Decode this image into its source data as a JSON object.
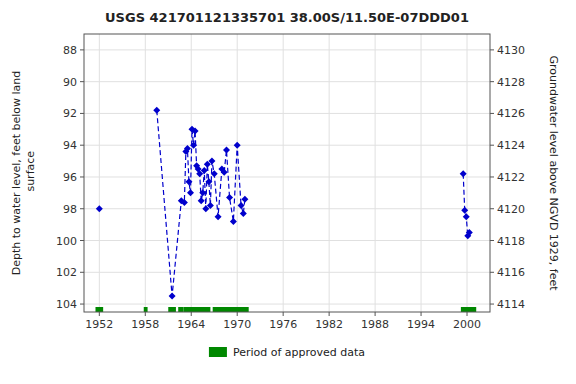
{
  "chart_data": {
    "type": "line",
    "title": "USGS 421701121335701 38.00S/11.50E-07DDD01",
    "ylabel": "Depth to water level, feet below land\n surface",
    "y2label": "Groundwater level above NGVD 1929, feet",
    "x": [
      1952.0,
      null,
      1959.5,
      1961.5,
      1962.7,
      1963.1,
      1963.3,
      1963.5,
      1963.7,
      1963.9,
      1964.1,
      1964.3,
      1964.5,
      1964.7,
      1964.9,
      1965.1,
      1965.3,
      1965.5,
      1965.7,
      1965.9,
      1966.1,
      1966.3,
      1966.5,
      1966.7,
      1967.0,
      1967.5,
      1968.0,
      1968.3,
      1968.6,
      1969.0,
      1969.5,
      1970.0,
      1970.5,
      1970.8,
      1971.0,
      null,
      1999.5,
      1999.7,
      1999.9,
      2000.1,
      2000.3
    ],
    "series": [
      {
        "type": "line",
        "color": "#0000CC",
        "marker": "diamond",
        "line_style": "dashed",
        "values": [
          98.0,
          null,
          91.8,
          103.5,
          97.5,
          97.6,
          94.4,
          94.2,
          96.3,
          97.0,
          93.0,
          94.0,
          93.1,
          95.3,
          95.5,
          95.8,
          97.5,
          97.0,
          95.6,
          98.0,
          95.2,
          96.3,
          97.8,
          95.0,
          95.8,
          98.5,
          95.5,
          95.7,
          94.3,
          97.3,
          98.8,
          94.0,
          97.8,
          98.3,
          97.4,
          null,
          95.8,
          98.1,
          98.5,
          99.7,
          99.5
        ]
      },
      {
        "type": "span",
        "name": "Period of approved data",
        "color": "#008800",
        "periods": [
          [
            1951.5,
            1952.5
          ],
          [
            1957.8,
            1958.3
          ],
          [
            1961.0,
            1962.0
          ],
          [
            1962.3,
            1963.0
          ],
          [
            1963.0,
            1966.5
          ],
          [
            1966.8,
            1971.5
          ],
          [
            1999.2,
            2001.2
          ]
        ]
      }
    ],
    "xlim": [
      1950,
      2003
    ],
    "xticks": [
      1952,
      1958,
      1964,
      1970,
      1976,
      1982,
      1988,
      1994,
      2000
    ],
    "ylim": [
      104.5,
      87
    ],
    "yticks": [
      88,
      90,
      92,
      94,
      96,
      98,
      100,
      102,
      104
    ],
    "y2lim": [
      4113.5,
      4131
    ],
    "y2ticks": [
      4114,
      4116,
      4118,
      4120,
      4122,
      4124,
      4126,
      4128,
      4130
    ],
    "grid": true,
    "legend": "bottom"
  }
}
